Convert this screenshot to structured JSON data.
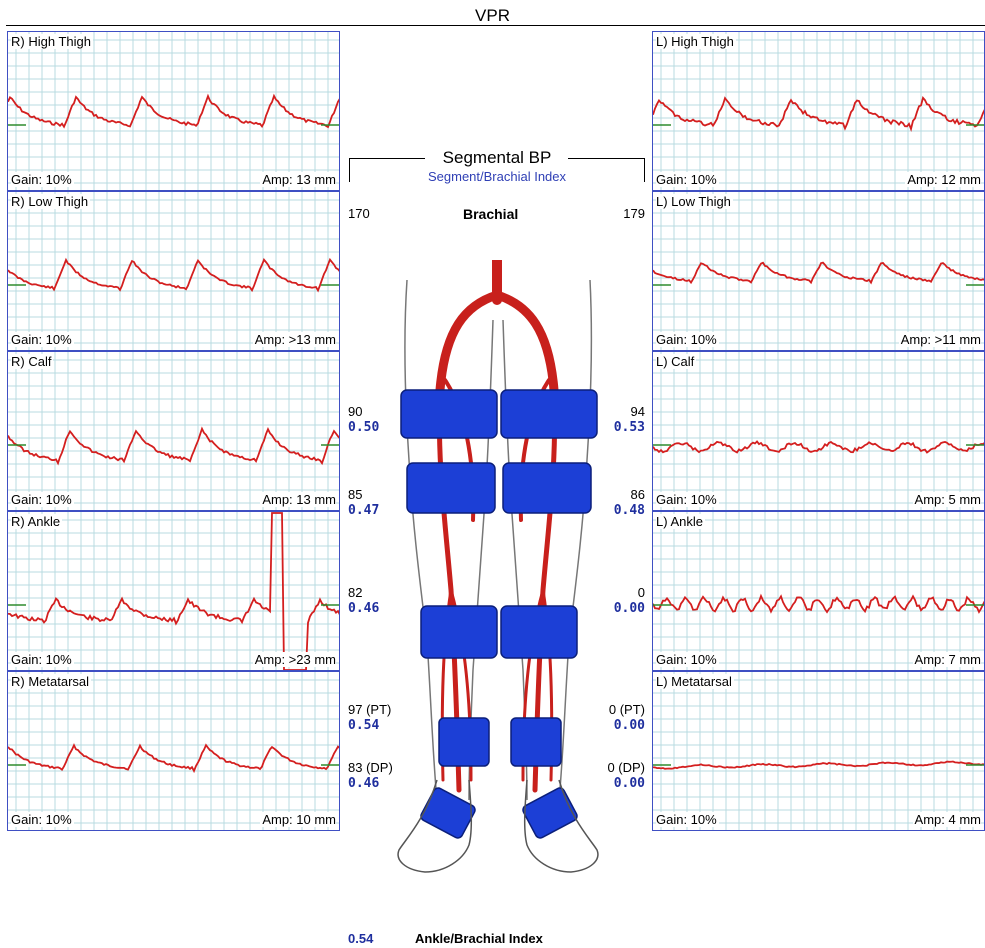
{
  "title": "VPR",
  "segmental": {
    "title": "Segmental BP",
    "subtitle": "Segment/Brachial Index",
    "brachial_label": "Brachial",
    "brachial_right": "170",
    "brachial_left": "179",
    "right": [
      {
        "pressure": "90",
        "index": "0.50"
      },
      {
        "pressure": "85",
        "index": "0.47"
      },
      {
        "pressure": "82",
        "index": "0.46"
      },
      {
        "pressure": "97 (PT)",
        "index": "0.54"
      },
      {
        "pressure": "83 (DP)",
        "index": "0.46"
      }
    ],
    "left": [
      {
        "pressure": "94",
        "index": "0.53"
      },
      {
        "pressure": "86",
        "index": "0.48"
      },
      {
        "pressure": "0",
        "index": "0.00"
      },
      {
        "pressure": "0 (PT)",
        "index": "0.00"
      },
      {
        "pressure": "0 (DP)",
        "index": "0.00"
      }
    ]
  },
  "panels_right": [
    {
      "label": "R) High Thigh",
      "gain": "Gain: 10%",
      "amp": "Amp: 13 mm"
    },
    {
      "label": "R) Low Thigh",
      "gain": "Gain: 10%",
      "amp": "Amp: >13 mm"
    },
    {
      "label": "R) Calf",
      "gain": "Gain: 10%",
      "amp": "Amp: 13 mm"
    },
    {
      "label": "R) Ankle",
      "gain": "Gain: 10%",
      "amp": "Amp: >23 mm"
    },
    {
      "label": "R) Metatarsal",
      "gain": "Gain: 10%",
      "amp": "Amp: 10 mm"
    }
  ],
  "panels_left": [
    {
      "label": "L) High Thigh",
      "gain": "Gain: 10%",
      "amp": "Amp: 12 mm"
    },
    {
      "label": "L) Low Thigh",
      "gain": "Gain: 10%",
      "amp": "Amp: >11 mm"
    },
    {
      "label": "L) Calf",
      "gain": "Gain: 10%",
      "amp": "Amp: 5 mm"
    },
    {
      "label": "L) Ankle",
      "gain": "Gain: 10%",
      "amp": "Amp: 7 mm"
    },
    {
      "label": "L) Metatarsal",
      "gain": "Gain: 10%",
      "amp": "Amp: 4 mm"
    }
  ],
  "abi": {
    "value": "0.54",
    "label": "Ankle/Brachial Index"
  },
  "colors": {
    "grid": "#b9dbe0",
    "border": "#3f4fc3",
    "trace": "#d41f1f",
    "baseline": "#2e8b2e",
    "index": "#1f2f9e",
    "cuff": "#1c3fd6",
    "artery": "#c8201c"
  }
}
